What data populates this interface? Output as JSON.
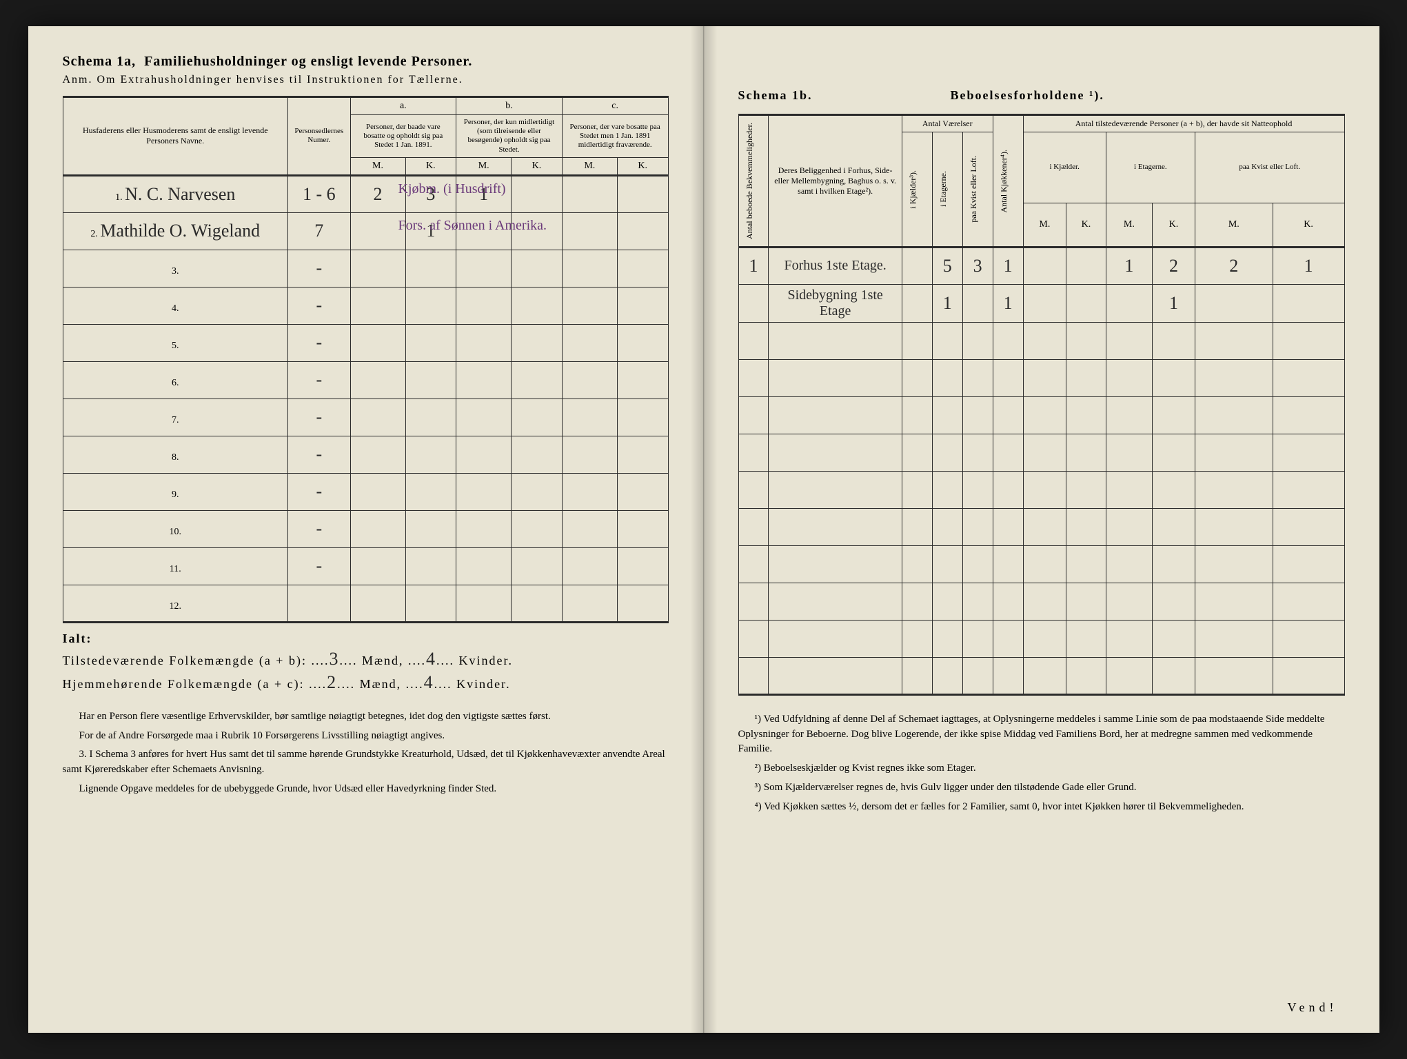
{
  "paper_bg": "#e8e4d4",
  "ink": "#2b2b2b",
  "hand_ink": "#2a2a2a",
  "purple_ink": "#6b3a7a",
  "left": {
    "title_a": "Schema 1a,",
    "title_b": "Familiehusholdninger og ensligt levende Personer.",
    "subtitle": "Anm. Om Extrahusholdninger henvises til Instruktionen for Tællerne.",
    "col_name": "Husfaderens eller Husmoderens samt de ensligt levende Personers Navne.",
    "col_num": "Personsedlernes Numer.",
    "col_a_head": "a.",
    "col_a": "Personer, der baade vare bosatte og opholdt sig paa Stedet 1 Jan. 1891.",
    "col_b_head": "b.",
    "col_b": "Personer, der kun midlertidigt (som tilreisende eller besøgende) opholdt sig paa Stedet.",
    "col_c_head": "c.",
    "col_c": "Personer, der vare bosatte paa Stedet men 1 Jan. 1891 midlertidigt fraværende.",
    "mk_m": "M.",
    "mk_k": "K.",
    "rows": [
      {
        "n": "1.",
        "name": "N. C. Narvesen",
        "num": "1 - 6",
        "aM": "2",
        "aK": "3",
        "bM": "1",
        "bK": "",
        "cM": "",
        "cK": "",
        "note": "Kjøbm. (i Husdrift)"
      },
      {
        "n": "2.",
        "name": "Mathilde O. Wigeland",
        "num": "7",
        "aM": "",
        "aK": "1",
        "bM": "",
        "bK": "",
        "cM": "",
        "cK": "",
        "note": "Fors. af Sønnen i Amerika."
      },
      {
        "n": "3.",
        "name": "",
        "num": "-",
        "aM": "",
        "aK": "",
        "bM": "",
        "bK": "",
        "cM": "",
        "cK": "",
        "note": ""
      },
      {
        "n": "4.",
        "name": "",
        "num": "-",
        "aM": "",
        "aK": "",
        "bM": "",
        "bK": "",
        "cM": "",
        "cK": "",
        "note": ""
      },
      {
        "n": "5.",
        "name": "",
        "num": "-",
        "aM": "",
        "aK": "",
        "bM": "",
        "bK": "",
        "cM": "",
        "cK": "",
        "note": ""
      },
      {
        "n": "6.",
        "name": "",
        "num": "-",
        "aM": "",
        "aK": "",
        "bM": "",
        "bK": "",
        "cM": "",
        "cK": "",
        "note": ""
      },
      {
        "n": "7.",
        "name": "",
        "num": "-",
        "aM": "",
        "aK": "",
        "bM": "",
        "bK": "",
        "cM": "",
        "cK": "",
        "note": ""
      },
      {
        "n": "8.",
        "name": "",
        "num": "-",
        "aM": "",
        "aK": "",
        "bM": "",
        "bK": "",
        "cM": "",
        "cK": "",
        "note": ""
      },
      {
        "n": "9.",
        "name": "",
        "num": "-",
        "aM": "",
        "aK": "",
        "bM": "",
        "bK": "",
        "cM": "",
        "cK": "",
        "note": ""
      },
      {
        "n": "10.",
        "name": "",
        "num": "-",
        "aM": "",
        "aK": "",
        "bM": "",
        "bK": "",
        "cM": "",
        "cK": "",
        "note": ""
      },
      {
        "n": "11.",
        "name": "",
        "num": "-",
        "aM": "",
        "aK": "",
        "bM": "",
        "bK": "",
        "cM": "",
        "cK": "",
        "note": ""
      },
      {
        "n": "12.",
        "name": "",
        "num": "",
        "aM": "",
        "aK": "",
        "bM": "",
        "bK": "",
        "cM": "",
        "cK": "",
        "note": ""
      }
    ],
    "ialt": "Ialt:",
    "tot1_label": "Tilstedeværende Folkemængde (a + b):",
    "tot1_m": "3",
    "tot1_m_lbl": "Mænd,",
    "tot1_k": "4",
    "tot1_k_lbl": "Kvinder.",
    "tot2_label": "Hjemmehørende Folkemængde (a + c):",
    "tot2_m": "2",
    "tot2_m_lbl": "Mænd,",
    "tot2_k": "4",
    "tot2_k_lbl": "Kvinder.",
    "fn1": "Har en Person flere væsentlige Erhvervskilder, bør samtlige nøiagtigt betegnes, idet dog den vigtigste sættes først.",
    "fn2": "For de af Andre Forsørgede maa i Rubrik 10 Forsørgerens Livsstilling nøiagtigt angives.",
    "fn3": "3. I Schema 3 anføres for hvert Hus samt det til samme hørende Grundstykke Kreaturhold, Udsæd, det til Kjøkkenhavevæxter anvendte Areal samt Kjøreredskaber efter Schemaets Anvisning.",
    "fn4": "Lignende Opgave meddeles for de ubebyggede Grunde, hvor Udsæd eller Havedyrkning finder Sted."
  },
  "right": {
    "title_a": "Schema 1b.",
    "title_b": "Beboelsesforholdene ¹).",
    "col_antal_bekv": "Antal beboede Bekvemmeligheder.",
    "col_belig": "Deres Beliggenhed i Forhus, Side- eller Mellembygning, Baghus o. s. v. samt i hvilken Etage²).",
    "col_vaer": "Antal Værelser",
    "col_kjael": "i Kjælder³).",
    "col_etag": "i Etagerne.",
    "col_kvist": "paa Kvist eller Loft.",
    "col_kjok": "Antal Kjøkkener⁴).",
    "col_natte": "Antal tilstedeværende Personer (a + b), der havde sit Natteophold",
    "col_n_kjael": "i Kjælder.",
    "col_n_etag": "i Etagerne.",
    "col_n_kvist": "paa Kvist eller Loft.",
    "mk_m": "M.",
    "mk_k": "K.",
    "rows": [
      {
        "bekv": "1",
        "belig": "Forhus 1ste Etage.",
        "kj": "",
        "et": "5",
        "kv": "3",
        "kk": "1",
        "nkM": "",
        "nkK": "",
        "neM": "1",
        "neK": "2",
        "nvM": "2",
        "nvK": "1"
      },
      {
        "bekv": "",
        "belig": "Sidebygning 1ste Etage",
        "kj": "",
        "et": "1",
        "kv": "",
        "kk": "1",
        "nkM": "",
        "nkK": "",
        "neM": "",
        "neK": "1",
        "nvM": "",
        "nvK": ""
      },
      {
        "bekv": "",
        "belig": "",
        "kj": "",
        "et": "",
        "kv": "",
        "kk": "",
        "nkM": "",
        "nkK": "",
        "neM": "",
        "neK": "",
        "nvM": "",
        "nvK": ""
      },
      {
        "bekv": "",
        "belig": "",
        "kj": "",
        "et": "",
        "kv": "",
        "kk": "",
        "nkM": "",
        "nkK": "",
        "neM": "",
        "neK": "",
        "nvM": "",
        "nvK": ""
      },
      {
        "bekv": "",
        "belig": "",
        "kj": "",
        "et": "",
        "kv": "",
        "kk": "",
        "nkM": "",
        "nkK": "",
        "neM": "",
        "neK": "",
        "nvM": "",
        "nvK": ""
      },
      {
        "bekv": "",
        "belig": "",
        "kj": "",
        "et": "",
        "kv": "",
        "kk": "",
        "nkM": "",
        "nkK": "",
        "neM": "",
        "neK": "",
        "nvM": "",
        "nvK": ""
      },
      {
        "bekv": "",
        "belig": "",
        "kj": "",
        "et": "",
        "kv": "",
        "kk": "",
        "nkM": "",
        "nkK": "",
        "neM": "",
        "neK": "",
        "nvM": "",
        "nvK": ""
      },
      {
        "bekv": "",
        "belig": "",
        "kj": "",
        "et": "",
        "kv": "",
        "kk": "",
        "nkM": "",
        "nkK": "",
        "neM": "",
        "neK": "",
        "nvM": "",
        "nvK": ""
      },
      {
        "bekv": "",
        "belig": "",
        "kj": "",
        "et": "",
        "kv": "",
        "kk": "",
        "nkM": "",
        "nkK": "",
        "neM": "",
        "neK": "",
        "nvM": "",
        "nvK": ""
      },
      {
        "bekv": "",
        "belig": "",
        "kj": "",
        "et": "",
        "kv": "",
        "kk": "",
        "nkM": "",
        "nkK": "",
        "neM": "",
        "neK": "",
        "nvM": "",
        "nvK": ""
      },
      {
        "bekv": "",
        "belig": "",
        "kj": "",
        "et": "",
        "kv": "",
        "kk": "",
        "nkM": "",
        "nkK": "",
        "neM": "",
        "neK": "",
        "nvM": "",
        "nvK": ""
      },
      {
        "bekv": "",
        "belig": "",
        "kj": "",
        "et": "",
        "kv": "",
        "kk": "",
        "nkM": "",
        "nkK": "",
        "neM": "",
        "neK": "",
        "nvM": "",
        "nvK": ""
      }
    ],
    "fn1": "¹) Ved Udfyldning af denne Del af Schemaet iagttages, at Oplysningerne meddeles i samme Linie som de paa modstaaende Side meddelte Oplysninger for Beboerne. Dog blive Logerende, der ikke spise Middag ved Familiens Bord, her at medregne sammen med vedkommende Familie.",
    "fn2": "²) Beboelseskjælder og Kvist regnes ikke som Etager.",
    "fn3": "³) Som Kjælderværelser regnes de, hvis Gulv ligger under den tilstødende Gade eller Grund.",
    "fn4": "⁴) Ved Kjøkken sættes ½, dersom det er fælles for 2 Familier, samt 0, hvor intet Kjøkken hører til Bekvemmeligheden.",
    "vend": "Vend!"
  }
}
